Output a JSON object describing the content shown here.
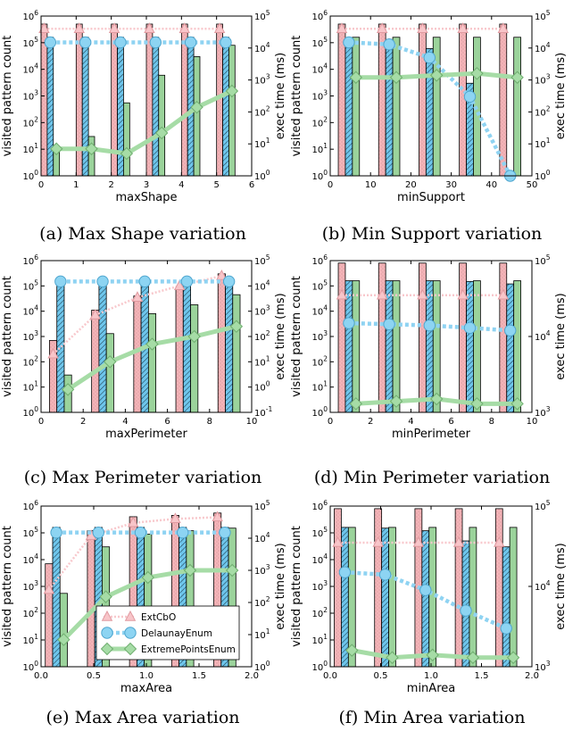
{
  "colors": {
    "ExtCbO": "#f4b4b8",
    "DelaunayEnum": "#6ec6ec",
    "ExtremePointsEnum": "#9bd39b",
    "ExtCbO_line": "#f8c8cc",
    "DelaunayEnum_line": "#8fd3f2",
    "ExtremePointsEnum_line": "#a6dca6"
  },
  "legend": {
    "entries": [
      "ExtCbO",
      "DelaunayEnum",
      "ExtremePointsEnum"
    ],
    "location": "lower-right",
    "panel": 4
  },
  "chart_data": [
    {
      "type": "bar",
      "caption": "(a) Max Shape variation",
      "xlabel": "maxShape",
      "ylabel": "visited pattern count",
      "y2label": "exec time (ms)",
      "xlim": [
        0,
        6
      ],
      "xticks": [
        "0",
        "1",
        "2",
        "3",
        "4",
        "5",
        "6"
      ],
      "ylim_log": [
        0,
        6
      ],
      "y2lim_log": [
        0,
        5
      ],
      "x": [
        0,
        1,
        2,
        3,
        4,
        5
      ],
      "bars": [
        {
          "name": "ExtCbO",
          "values": [
            500000,
            500000,
            500000,
            500000,
            500000,
            500000
          ]
        },
        {
          "name": "DelaunayEnum",
          "values": [
            160000,
            160000,
            160000,
            160000,
            160000,
            160000
          ]
        },
        {
          "name": "ExtremePointsEnum",
          "values": [
            8,
            30,
            550,
            6000,
            30000,
            80000
          ]
        }
      ],
      "lines": [
        {
          "name": "ExtCbO",
          "values": [
            40000,
            40000,
            40000,
            40000,
            40000,
            40000
          ]
        },
        {
          "name": "DelaunayEnum",
          "values": [
            15000,
            15000,
            15000,
            15000,
            15000,
            15000
          ]
        },
        {
          "name": "ExtremePointsEnum",
          "values": [
            7,
            7,
            5,
            22,
            140,
            450
          ]
        }
      ]
    },
    {
      "type": "bar",
      "caption": "(b) Min Support variation",
      "xlabel": "minSupport",
      "ylabel": "visited pattern count",
      "y2label": "exec time (ms)",
      "xlim": [
        0,
        50
      ],
      "xticks": [
        "0",
        "10",
        "20",
        "30",
        "40",
        "50"
      ],
      "ylim_log": [
        0,
        6
      ],
      "y2lim_log": [
        0,
        5
      ],
      "x": [
        2,
        12,
        22,
        32,
        42
      ],
      "bars": [
        {
          "name": "ExtCbO",
          "values": [
            500000,
            500000,
            500000,
            500000,
            500000
          ]
        },
        {
          "name": "DelaunayEnum",
          "values": [
            150000,
            120000,
            60000,
            3000,
            1
          ]
        },
        {
          "name": "ExtremePointsEnum",
          "values": [
            160000,
            160000,
            160000,
            160000,
            160000
          ]
        }
      ],
      "lines": [
        {
          "name": "ExtCbO",
          "values": [
            40000,
            40000,
            40000,
            40000,
            40000
          ]
        },
        {
          "name": "DelaunayEnum",
          "values": [
            15000,
            13000,
            5000,
            300,
            1
          ]
        },
        {
          "name": "ExtremePointsEnum",
          "values": [
            1200,
            1200,
            1400,
            1600,
            1200
          ]
        }
      ]
    },
    {
      "type": "bar",
      "caption": "(c) Max Perimeter variation",
      "xlabel": "maxPerimeter",
      "ylabel": "visited pattern count",
      "y2label": "exec time (ms)",
      "xlim": [
        0,
        10
      ],
      "xticks": [
        "0",
        "2",
        "4",
        "6",
        "8",
        "10"
      ],
      "ylim_log": [
        0,
        6
      ],
      "y2lim_log": [
        -1,
        5
      ],
      "y2ticks": [
        "10^-1",
        "10^0",
        "10^1",
        "10^2",
        "10^3",
        "10^4",
        "10^5"
      ],
      "x": [
        0.4,
        2.4,
        4.4,
        6.4,
        8.4
      ],
      "bars": [
        {
          "name": "ExtCbO",
          "values": [
            700,
            11000,
            40000,
            80000,
            300000
          ]
        },
        {
          "name": "DelaunayEnum",
          "values": [
            160000,
            160000,
            160000,
            160000,
            160000
          ]
        },
        {
          "name": "ExtremePointsEnum",
          "values": [
            30,
            1300,
            8000,
            18000,
            45000
          ]
        }
      ],
      "lines": [
        {
          "name": "ExtCbO",
          "values": [
            20,
            700,
            3500,
            10000,
            25000
          ]
        },
        {
          "name": "DelaunayEnum",
          "values": [
            15000,
            15000,
            15000,
            15000,
            15000
          ]
        },
        {
          "name": "ExtremePointsEnum",
          "values": [
            0.8,
            10,
            50,
            100,
            250
          ]
        }
      ]
    },
    {
      "type": "bar",
      "caption": "(d) Min Perimeter variation",
      "xlabel": "minPerimeter",
      "ylabel": "visited pattern count",
      "y2label": "exec time (ms)",
      "xlim": [
        0,
        10
      ],
      "xticks": [
        "0",
        "2",
        "4",
        "6",
        "8",
        "10"
      ],
      "ylim_log": [
        0,
        6
      ],
      "y2lim_log": [
        3,
        5
      ],
      "x": [
        0.4,
        2.4,
        4.4,
        6.4,
        8.4
      ],
      "bars": [
        {
          "name": "ExtCbO",
          "values": [
            800000,
            800000,
            800000,
            800000,
            800000
          ]
        },
        {
          "name": "DelaunayEnum",
          "values": [
            160000,
            160000,
            160000,
            150000,
            120000
          ]
        },
        {
          "name": "ExtremePointsEnum",
          "values": [
            160000,
            160000,
            160000,
            160000,
            160000
          ]
        }
      ],
      "lines": [
        {
          "name": "ExtCbO",
          "values": [
            35000,
            35000,
            35000,
            35000,
            35000
          ]
        },
        {
          "name": "DelaunayEnum",
          "values": [
            15000,
            14500,
            14000,
            13000,
            12000
          ]
        },
        {
          "name": "ExtremePointsEnum",
          "values": [
            1300,
            1400,
            1500,
            1300,
            1300
          ]
        }
      ]
    },
    {
      "type": "bar",
      "caption": "(e) Max Area variation",
      "xlabel": "maxArea",
      "ylabel": "visited pattern count",
      "y2label": "exec time (ms)",
      "xlim": [
        0,
        2
      ],
      "xticks": [
        "0.0",
        "0.5",
        "1.0",
        "1.5",
        "2.0"
      ],
      "ylim_log": [
        0,
        6
      ],
      "y2lim_log": [
        0,
        5
      ],
      "x": [
        0.04,
        0.44,
        0.84,
        1.24,
        1.64
      ],
      "bars": [
        {
          "name": "ExtCbO",
          "values": [
            7000,
            120000,
            400000,
            450000,
            550000
          ]
        },
        {
          "name": "DelaunayEnum",
          "values": [
            160000,
            160000,
            160000,
            160000,
            160000
          ]
        },
        {
          "name": "ExtremePointsEnum",
          "values": [
            550,
            30000,
            90000,
            120000,
            150000
          ]
        }
      ],
      "lines": [
        {
          "name": "ExtCbO",
          "values": [
            250,
            12000,
            30000,
            40000,
            45000
          ]
        },
        {
          "name": "DelaunayEnum",
          "values": [
            15000,
            15000,
            15000,
            15000,
            15000
          ]
        },
        {
          "name": "ExtremePointsEnum",
          "values": [
            7,
            150,
            600,
            1000,
            1000
          ]
        }
      ]
    },
    {
      "type": "bar",
      "caption": "(f) Min Area variation",
      "xlabel": "minArea",
      "ylabel": "visited pattern count",
      "y2label": "exec time (ms)",
      "xlim": [
        0,
        2
      ],
      "xticks": [
        "0.0",
        "0.5",
        "1.0",
        "1.5",
        "2.0"
      ],
      "ylim_log": [
        0,
        6
      ],
      "y2lim_log": [
        3,
        5
      ],
      "x": [
        0.04,
        0.44,
        0.84,
        1.24,
        1.64
      ],
      "bars": [
        {
          "name": "ExtCbO",
          "values": [
            800000,
            800000,
            800000,
            800000,
            800000
          ]
        },
        {
          "name": "DelaunayEnum",
          "values": [
            160000,
            150000,
            120000,
            50000,
            30000
          ]
        },
        {
          "name": "ExtremePointsEnum",
          "values": [
            160000,
            160000,
            160000,
            160000,
            160000
          ]
        }
      ],
      "lines": [
        {
          "name": "ExtCbO",
          "values": [
            35000,
            35000,
            35000,
            35000,
            35000
          ]
        },
        {
          "name": "DelaunayEnum",
          "values": [
            15000,
            14000,
            9000,
            5000,
            3000
          ]
        },
        {
          "name": "ExtremePointsEnum",
          "values": [
            1600,
            1300,
            1400,
            1300,
            1300
          ]
        }
      ]
    }
  ]
}
